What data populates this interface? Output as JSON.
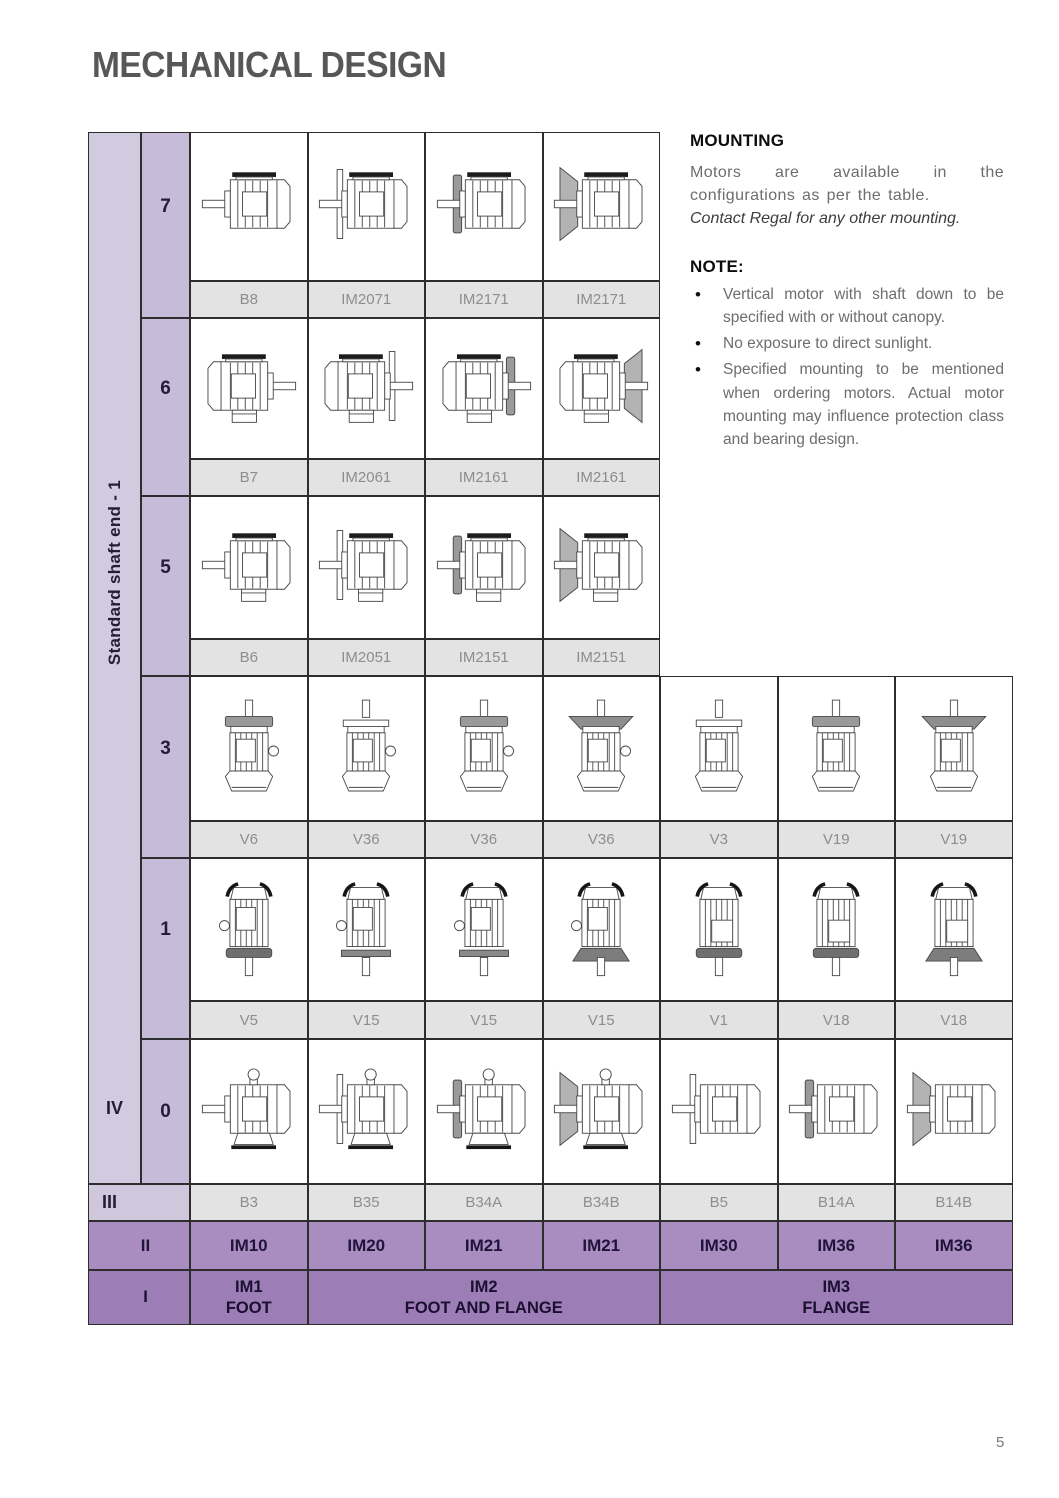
{
  "title": "MECHANICAL DESIGN",
  "page_number": "5",
  "info": {
    "mounting_title": "MOUNTING",
    "mounting_body": "Motors are available in the configurations as per the table.",
    "mounting_italic": "Contact Regal for any other mounting.",
    "note_title": "NOTE:",
    "notes": [
      "Vertical motor with shaft down to be specified with or without canopy.",
      "No exposure to direct sunlight.",
      "Specified mounting to be mentioned when ordering motors. Actual motor mounting may influence protection class and bearing design."
    ]
  },
  "table": {
    "side_label": "Standard shaft end - 1",
    "row_axis_label": "IV",
    "axis_iii": "III",
    "axis_ii": "II",
    "axis_i": "I",
    "rows": [
      {
        "num": "7",
        "labels": [
          "B8",
          "IM2071",
          "IM2171",
          "IM2171"
        ],
        "motors": [
          {
            "o": "h",
            "shaft": "left",
            "feet": "top",
            "flange": "none"
          },
          {
            "o": "h",
            "shaft": "left",
            "feet": "top",
            "flange": "plate"
          },
          {
            "o": "h",
            "shaft": "left",
            "feet": "top",
            "flange": "disc"
          },
          {
            "o": "h",
            "shaft": "left",
            "feet": "top",
            "flange": "cone"
          }
        ]
      },
      {
        "num": "6",
        "labels": [
          "B7",
          "IM2061",
          "IM2161",
          "IM2161"
        ],
        "motors": [
          {
            "o": "h",
            "shaft": "right",
            "feet": "top",
            "flange": "none",
            "box": true
          },
          {
            "o": "h",
            "shaft": "right",
            "feet": "top",
            "flange": "plate",
            "box": true
          },
          {
            "o": "h",
            "shaft": "right",
            "feet": "top",
            "flange": "disc",
            "box": true
          },
          {
            "o": "h",
            "shaft": "right",
            "feet": "top",
            "flange": "cone",
            "box": true
          }
        ]
      },
      {
        "num": "5",
        "labels": [
          "B6",
          "IM2051",
          "IM2151",
          "IM2151"
        ],
        "motors": [
          {
            "o": "h",
            "shaft": "left",
            "feet": "top",
            "flange": "none",
            "box": true
          },
          {
            "o": "h",
            "shaft": "left",
            "feet": "top",
            "flange": "plate",
            "box": true
          },
          {
            "o": "h",
            "shaft": "left",
            "feet": "top",
            "flange": "disc",
            "box": true
          },
          {
            "o": "h",
            "shaft": "left",
            "feet": "top",
            "flange": "cone",
            "box": true
          }
        ]
      },
      {
        "num": "3",
        "labels": [
          "V6",
          "V36",
          "V36",
          "V36",
          "V3",
          "V19",
          "V19"
        ],
        "motors": [
          {
            "o": "vu",
            "flange": "disc",
            "knob": true
          },
          {
            "o": "vu",
            "flange": "plate",
            "knob": true
          },
          {
            "o": "vu",
            "flange": "disc",
            "knob": true
          },
          {
            "o": "vu",
            "flange": "cone",
            "knob": true
          },
          {
            "o": "vu",
            "flange": "plate",
            "knob": false
          },
          {
            "o": "vu",
            "flange": "disc",
            "knob": false
          },
          {
            "o": "vu",
            "flange": "cone",
            "knob": false
          }
        ]
      },
      {
        "num": "1",
        "labels": [
          "V5",
          "V15",
          "V15",
          "V15",
          "V1",
          "V18",
          "V18"
        ],
        "motors": [
          {
            "o": "vd",
            "flange": "disc",
            "knob": true
          },
          {
            "o": "vd",
            "flange": "plate",
            "knob": true
          },
          {
            "o": "vd",
            "flange": "plate",
            "knob": true
          },
          {
            "o": "vd",
            "flange": "cone",
            "knob": true
          },
          {
            "o": "vd",
            "flange": "disc",
            "knob": false
          },
          {
            "o": "vd",
            "flange": "disc",
            "knob": false
          },
          {
            "o": "vd",
            "flange": "cone",
            "knob": false
          }
        ]
      },
      {
        "num": "0",
        "labels": null,
        "motors": [
          {
            "o": "h",
            "shaft": "left",
            "feet": "bottom",
            "flange": "none",
            "eye": true
          },
          {
            "o": "h",
            "shaft": "left",
            "feet": "bottom",
            "flange": "plate",
            "eye": true
          },
          {
            "o": "h",
            "shaft": "left",
            "feet": "bottom",
            "flange": "disc",
            "eye": true
          },
          {
            "o": "h",
            "shaft": "left",
            "feet": "bottom",
            "flange": "cone",
            "eye": true
          },
          {
            "o": "h",
            "shaft": "left",
            "flange": "plate"
          },
          {
            "o": "h",
            "shaft": "left",
            "flange": "disc"
          },
          {
            "o": "h",
            "shaft": "left",
            "flange": "cone"
          }
        ]
      }
    ],
    "mount_codes": [
      "B3",
      "B35",
      "B34A",
      "B34B",
      "B5",
      "B14A",
      "B14B"
    ],
    "im_codes": [
      "IM10",
      "IM20",
      "IM21",
      "IM21",
      "IM30",
      "IM36",
      "IM36"
    ],
    "im_groups": [
      {
        "code": "IM1",
        "name": "FOOT",
        "span": 1
      },
      {
        "code": "IM2",
        "name": "FOOT AND FLANGE",
        "span": 3
      },
      {
        "code": "IM3",
        "name": "FLANGE",
        "span": 3
      }
    ],
    "colors": {
      "sidebar": "#d1cbdf",
      "number_col": "#c6bbd8",
      "label_cell": "#e3e3e3",
      "row_ii": "#aa8dc0",
      "row_i": "#9d7db6",
      "border": "#2d2d2d",
      "label_text": "#8d8d8d"
    }
  }
}
